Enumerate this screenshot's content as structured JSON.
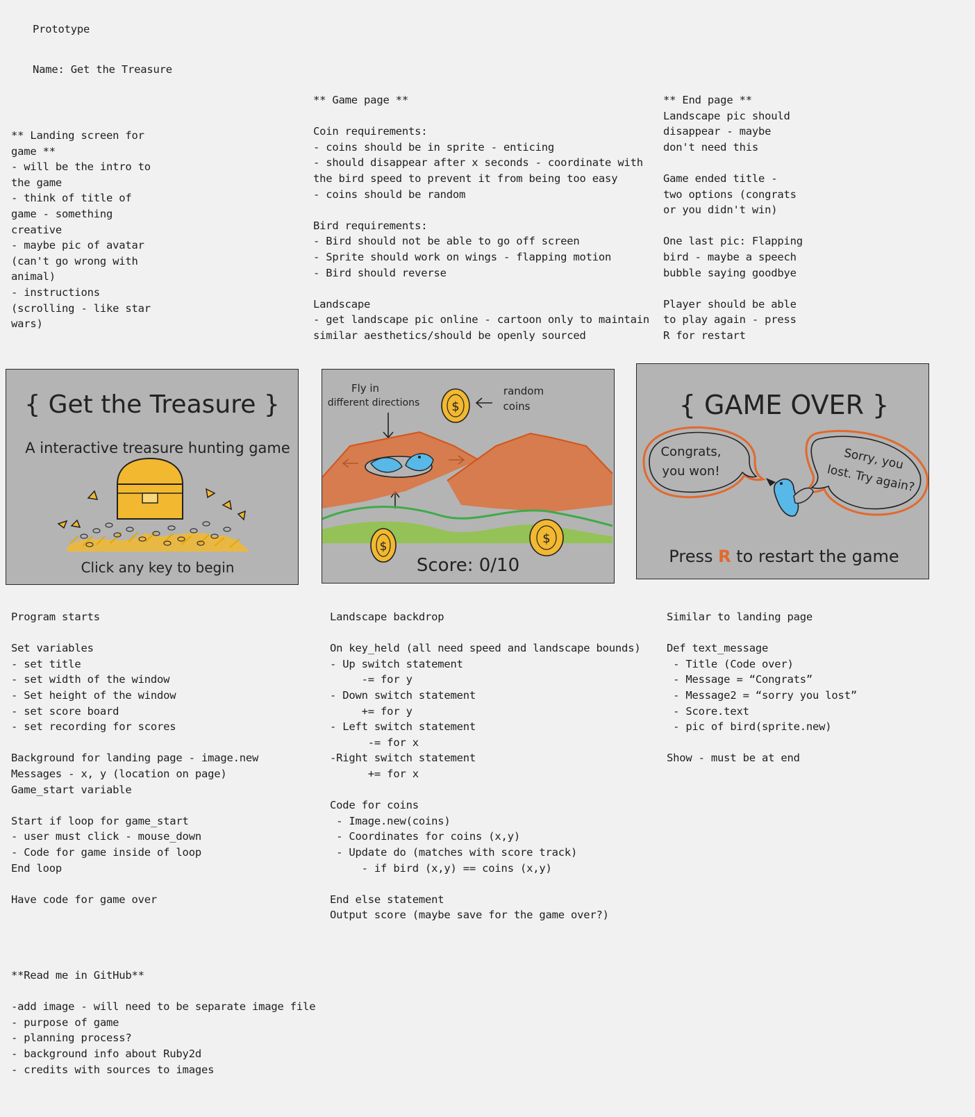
{
  "header": {
    "label": "Prototype",
    "name": "Name: Get the Treasure"
  },
  "landing_notes": {
    "lines": [
      "** Landing screen for",
      "game **",
      "- will be the intro to",
      "the game",
      "- think of title of",
      "game - something",
      "creative",
      "- maybe pic of avatar",
      "(can't go wrong with",
      "animal)",
      "- instructions",
      "(scrolling - like star",
      "wars)"
    ]
  },
  "game_notes": {
    "lines": [
      "** Game page **",
      "",
      "Coin requirements:",
      "- coins should be in sprite - enticing",
      "- should disappear after x seconds - coordinate with",
      "the bird speed to prevent it from being too easy",
      "- coins should be random",
      "",
      "Bird requirements:",
      "- Bird should not be able to go off screen",
      "- Sprite should work on wings - flapping motion",
      "- Bird should reverse",
      "",
      "Landscape",
      "- get landscape pic online - cartoon only to maintain",
      "similar aesthetics/should be openly sourced"
    ]
  },
  "end_notes": {
    "lines": [
      "** End page **",
      "Landscape pic should",
      "disappear - maybe",
      "don't need this",
      "",
      "Game ended title -",
      "two options (congrats",
      "or you didn't win)",
      "",
      "One last pic: Flapping",
      "bird - maybe a speech",
      "bubble saying goodbye",
      "",
      "Player should be able",
      "to play again - press",
      "R for restart"
    ]
  },
  "landing_sketch": {
    "title": "{ Get the Treasure }",
    "subtitle": "A interactive treasure hunting game",
    "prompt": "Click any key to begin"
  },
  "game_sketch": {
    "fly_label_1": "Fly in",
    "fly_label_2": "different directions",
    "coins_label_1": "random",
    "coins_label_2": "coins",
    "score": "Score: 0/10",
    "coin_symbol": "$"
  },
  "end_sketch": {
    "title": "{ GAME OVER }",
    "bubble_left_1": "Congrats,",
    "bubble_left_2": "you won!",
    "bubble_right_1": "Sorry, you",
    "bubble_right_2": "lost. Try again?",
    "restart_pre": "Press",
    "restart_key": "R",
    "restart_post": "to restart the game"
  },
  "program_notes": {
    "lines": [
      "Program starts",
      "",
      "Set variables",
      "- set title",
      "- set width of the window",
      "- Set height of the window",
      "- set score board",
      "- set recording for scores",
      "",
      "Background for landing page - image.new",
      "Messages - x, y (location on page)",
      "Game_start variable",
      "",
      "Start if loop for game_start",
      "- user must click - mouse_down",
      "- Code for game inside of loop",
      "End loop",
      "",
      "Have code for game over"
    ]
  },
  "landscape_notes": {
    "lines": [
      "Landscape backdrop",
      "",
      "On key_held (all need speed and landscape bounds)",
      "- Up switch statement",
      "     -= for y",
      "- Down switch statement",
      "     += for y",
      "- Left switch statement",
      "      -= for x",
      "-Right switch statement",
      "      += for x",
      "",
      "Code for coins",
      " - Image.new(coins)",
      " - Coordinates for coins (x,y)",
      " - Update do (matches with score track)",
      "     - if bird (x,y) == coins (x,y)",
      "",
      "End else statement",
      "Output score (maybe save for the game over?)"
    ]
  },
  "end_code_notes": {
    "lines": [
      "Similar to landing page",
      "",
      "Def text_message",
      " - Title (Code over)",
      " - Message = “Congrats”",
      " - Message2 = “sorry you lost”",
      " - Score.text",
      " - pic of bird(sprite.new)",
      "",
      "Show - must be at end"
    ]
  },
  "readme_notes": {
    "lines": [
      "**Read me in GitHub**",
      "",
      "-add image - will need to be separate image file",
      "- purpose of game",
      "- planning process?",
      "- background info about Ruby2d",
      "- credits with sources to images"
    ]
  },
  "colors": {
    "panel_bg": "#b4b4b4",
    "page_bg": "#f1f1f1",
    "gold": "#f2b830",
    "mountain_orange": "#e2692e",
    "hill_green": "#3faa4a",
    "grass_green": "#8cc63f",
    "bird_blue": "#58b8e8"
  }
}
